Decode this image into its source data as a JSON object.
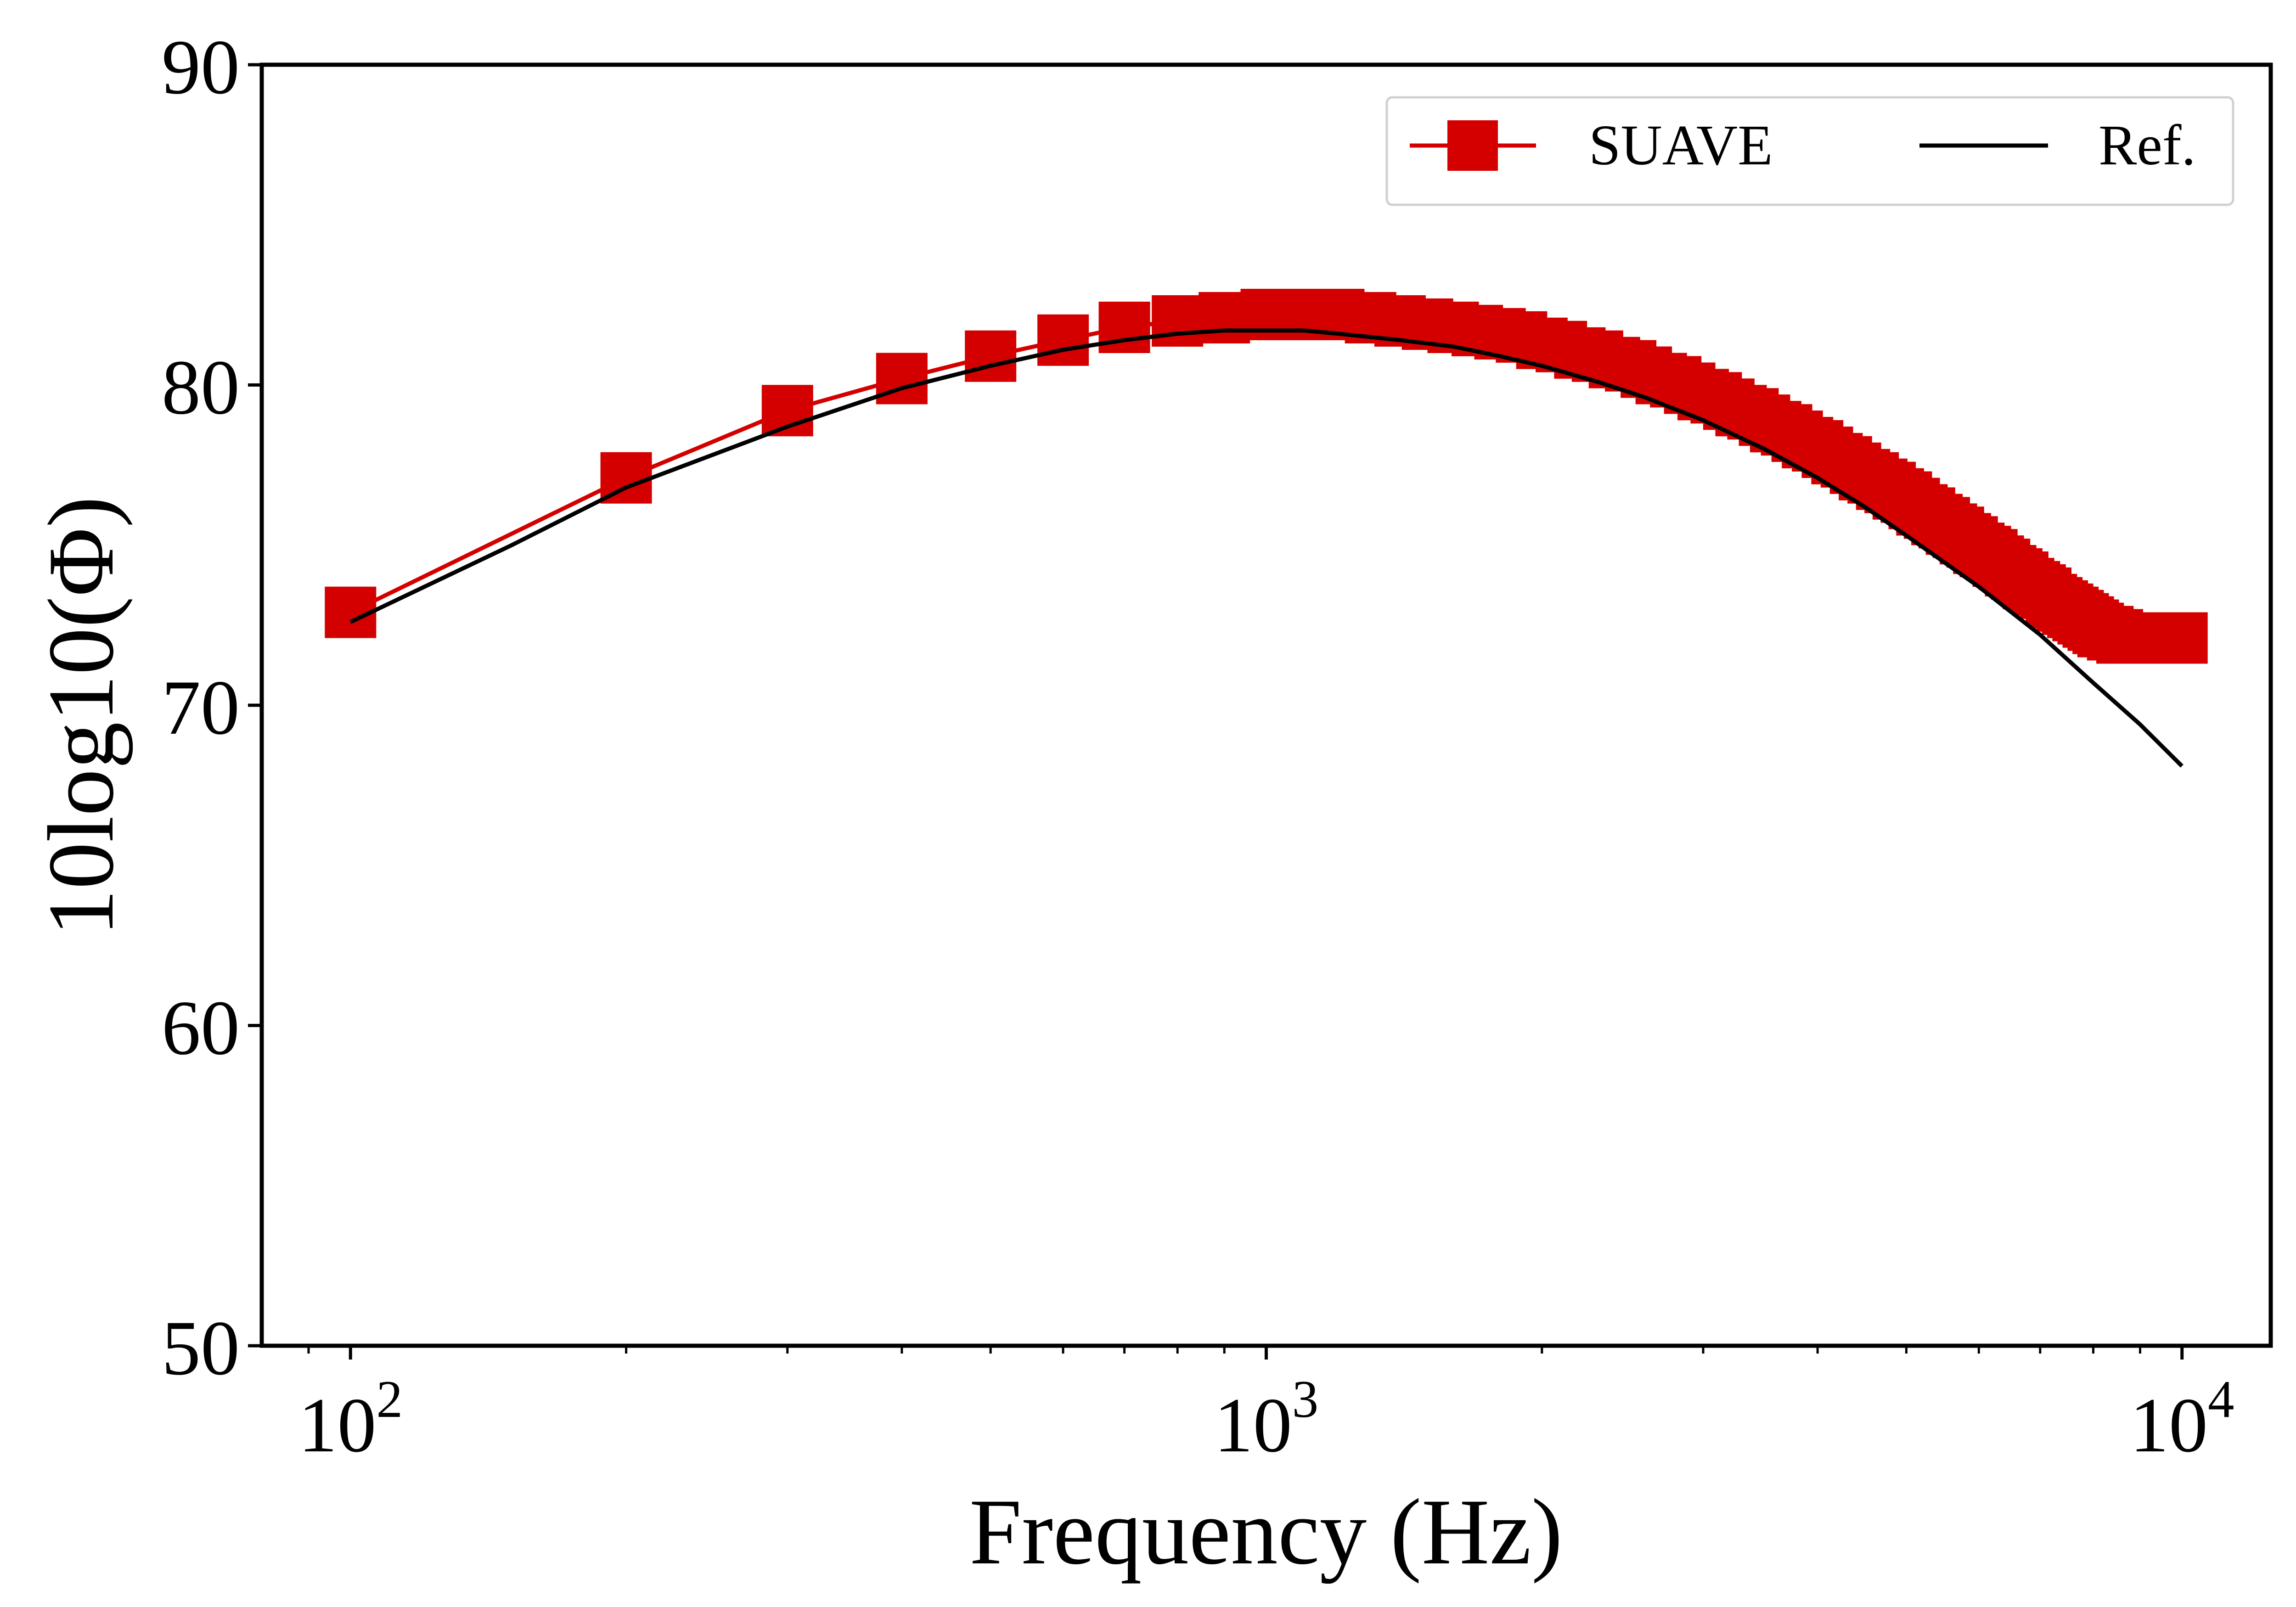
{
  "chart_data": {
    "type": "line",
    "title": "",
    "xlabel": "Frequency (Hz)",
    "ylabel": "10log10(Φ)",
    "xscale": "log",
    "xlim": [
      80,
      12500
    ],
    "ylim": [
      50,
      90
    ],
    "grid": false,
    "legend_position": "top-right",
    "legend_columns": 2,
    "x_ticks": [
      {
        "value": 100,
        "base": "10",
        "exp": "2"
      },
      {
        "value": 1000,
        "base": "10",
        "exp": "3"
      },
      {
        "value": 10000,
        "base": "10",
        "exp": "4"
      }
    ],
    "y_ticks": [
      50,
      60,
      70,
      80,
      90
    ],
    "colors": {
      "suave": "#d40000",
      "ref": "#000000"
    },
    "series": [
      {
        "name": "SUAVE",
        "marker": "square",
        "x": [
          100,
          200,
          300,
          400,
          500,
          600,
          700,
          800,
          900,
          1000,
          1100,
          1200,
          1300,
          1400,
          1500,
          1600,
          1700,
          1800,
          1900,
          2000,
          2100,
          2200,
          2300,
          2400,
          2500,
          2600,
          2700,
          2800,
          2900,
          3000,
          3100,
          3200,
          3300,
          3400,
          3500,
          3600,
          3700,
          3800,
          3900,
          4000,
          4100,
          4200,
          4300,
          4400,
          4500,
          4600,
          4700,
          4800,
          4900,
          5000,
          5100,
          5200,
          5300,
          5400,
          5500,
          5600,
          5700,
          5800,
          5900,
          6000,
          6100,
          6200,
          6300,
          6400,
          6500,
          6600,
          6700,
          6800,
          6900,
          7000,
          7100,
          7200,
          7300,
          7400,
          7500,
          7600,
          7700,
          7800,
          7900,
          8000,
          8100,
          8200,
          8300,
          8400,
          8500,
          8600,
          8700,
          8800,
          8900,
          9000,
          9100,
          9200,
          9300,
          9400,
          9500,
          9600,
          9700,
          9800,
          9900,
          10000
        ],
        "y": [
          72.9,
          77.1,
          79.2,
          80.2,
          80.9,
          81.4,
          81.8,
          82.0,
          82.1,
          82.2,
          82.2,
          82.2,
          82.1,
          82.0,
          81.9,
          81.8,
          81.7,
          81.6,
          81.5,
          81.3,
          81.2,
          81.0,
          80.9,
          80.7,
          80.6,
          80.4,
          80.2,
          80.1,
          79.9,
          79.7,
          79.6,
          79.4,
          79.2,
          79.1,
          78.9,
          78.7,
          78.6,
          78.4,
          78.2,
          78.1,
          77.9,
          77.7,
          77.6,
          77.4,
          77.2,
          77.1,
          76.9,
          76.8,
          76.6,
          76.5,
          76.3,
          76.1,
          76.0,
          75.8,
          75.7,
          75.5,
          75.4,
          75.2,
          75.1,
          74.9,
          74.8,
          74.7,
          74.5,
          74.4,
          74.2,
          74.1,
          74.0,
          73.8,
          73.7,
          73.6,
          73.5,
          73.3,
          73.2,
          73.1,
          73.0,
          72.9,
          72.8,
          72.7,
          72.6,
          72.5,
          72.4,
          72.3,
          72.3,
          72.2,
          72.2,
          72.1,
          72.1,
          72.1,
          72.1,
          72.1,
          72.1,
          72.1,
          72.1,
          72.1,
          72.1,
          72.1,
          72.1,
          72.1,
          72.1,
          72.1
        ]
      },
      {
        "name": "Ref.",
        "marker": "none",
        "x": [
          100,
          150,
          200,
          300,
          400,
          500,
          600,
          700,
          800,
          900,
          1000,
          1100,
          1200,
          1400,
          1600,
          1800,
          2000,
          2300,
          2600,
          3000,
          3500,
          4000,
          4500,
          5000,
          6000,
          7000,
          8000,
          9000,
          10000
        ],
        "y": [
          72.6,
          75.0,
          76.8,
          78.7,
          79.9,
          80.6,
          81.1,
          81.4,
          81.6,
          81.7,
          81.7,
          81.7,
          81.6,
          81.4,
          81.2,
          80.9,
          80.6,
          80.1,
          79.6,
          78.9,
          78.0,
          77.1,
          76.2,
          75.3,
          73.7,
          72.2,
          70.7,
          69.4,
          68.1
        ]
      }
    ]
  }
}
